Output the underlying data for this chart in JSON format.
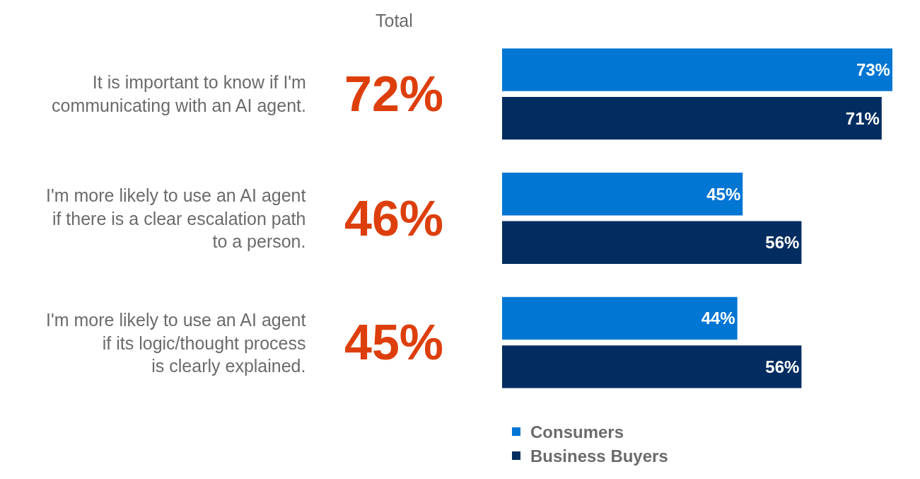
{
  "chart_data": {
    "type": "bar",
    "orientation": "horizontal",
    "categories": [
      "It is important to know if I'm\ncommunicating with an AI agent.",
      "I'm more likely to use an AI agent\nif there is a clear escalation path\nto a person.",
      "I'm more likely to use an AI agent\nif its logic/thought process\nis clearly explained."
    ],
    "series": [
      {
        "name": "Consumers",
        "color": "#0176d3",
        "values": [
          73,
          45,
          44
        ],
        "value_labels": [
          "73%",
          "45%",
          "44%"
        ]
      },
      {
        "name": "Business Buyers",
        "color": "#032d60",
        "values": [
          71,
          56,
          56
        ],
        "value_labels": [
          "71%",
          "56%",
          "56%"
        ]
      }
    ],
    "annotations": [
      "Total",
      "72%",
      "46%",
      "45%"
    ],
    "tick_labels": false,
    "legend": "bottom"
  }
}
